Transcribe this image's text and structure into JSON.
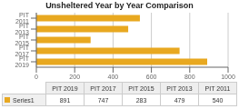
{
  "chart_data": {
    "type": "bar",
    "orientation": "horizontal",
    "title": "Unsheltered  Year by Year Comparison",
    "categories": [
      "PIT 2019",
      "PIT 2017",
      "PIT 2015",
      "PIT 2013",
      "PIT 2011"
    ],
    "series": [
      {
        "name": "Series1",
        "color": "#E8A820",
        "values": [
          891,
          747,
          283,
          479,
          540
        ]
      }
    ],
    "xlim": [
      0,
      1000
    ],
    "xticks": [
      0,
      200,
      400,
      600,
      800,
      1000
    ],
    "grid": true,
    "legend": "bottom"
  }
}
